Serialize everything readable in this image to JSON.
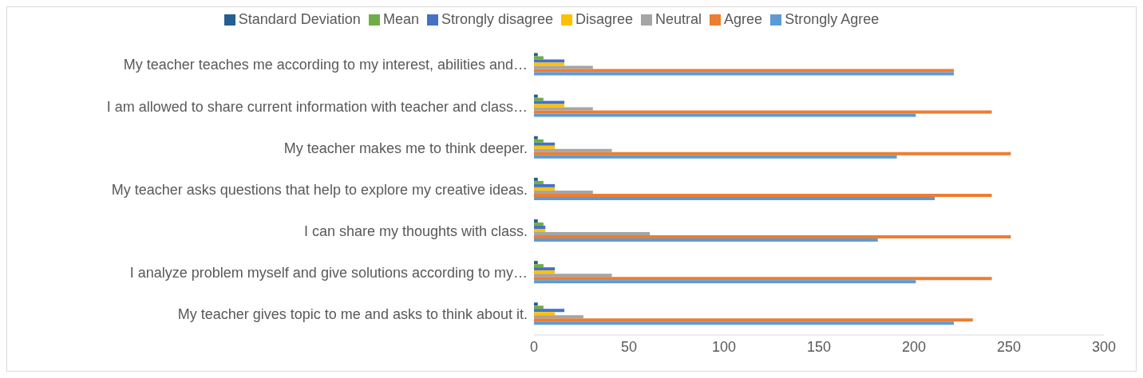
{
  "chart_data": {
    "type": "bar",
    "orientation": "horizontal",
    "categories": [
      "My teacher teaches me according to my interest, abilities and…",
      "I am allowed to share current information with teacher and class…",
      "My teacher makes me to think deeper.",
      "My teacher asks questions that help to explore my creative ideas.",
      "I can share my thoughts with class.",
      "I analyze problem myself and give solutions according to my…",
      "My teacher gives topic to me and asks to think about it."
    ],
    "series": [
      {
        "name": "Standard Deviation",
        "color": "#255e91",
        "values": [
          2,
          2,
          2,
          2,
          2,
          2,
          2
        ]
      },
      {
        "name": "Mean",
        "color": "#70ad47",
        "values": [
          5,
          5,
          5,
          5,
          5,
          5,
          5
        ]
      },
      {
        "name": "Strongly disagree",
        "color": "#4472c4",
        "values": [
          16,
          16,
          11,
          11,
          6,
          11,
          16
        ]
      },
      {
        "name": "Disagree",
        "color": "#ffc000",
        "values": [
          16,
          16,
          11,
          11,
          6,
          11,
          11
        ]
      },
      {
        "name": "Neutral",
        "color": "#a5a5a5",
        "values": [
          31,
          31,
          41,
          31,
          61,
          41,
          26
        ]
      },
      {
        "name": "Agree",
        "color": "#ed7d31",
        "values": [
          221,
          241,
          251,
          241,
          251,
          241,
          231
        ]
      },
      {
        "name": "Strongly Agree",
        "color": "#5b9bd5",
        "values": [
          221,
          201,
          191,
          211,
          181,
          201,
          221
        ]
      }
    ],
    "xlim": [
      0,
      300
    ],
    "xticks": [
      0,
      50,
      100,
      150,
      200,
      250,
      300
    ],
    "grid": false,
    "legend": "top"
  }
}
